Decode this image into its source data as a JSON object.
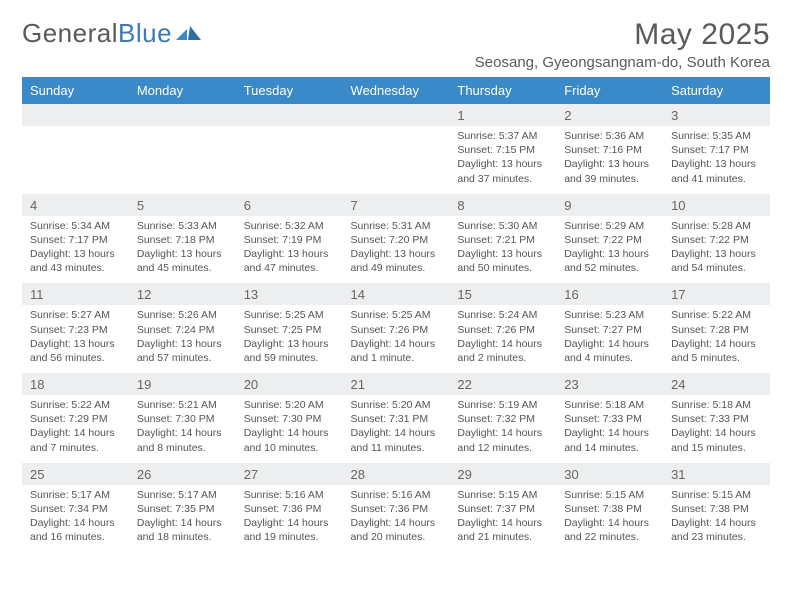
{
  "brand": {
    "part1": "General",
    "part2": "Blue",
    "logo_color": "#3a89c9"
  },
  "title": "May 2025",
  "location": "Seosang, Gyeongsangnam-do, South Korea",
  "colors": {
    "header_bg": "#3a89c9",
    "header_text": "#ffffff",
    "daynum_bg": "#eceeef",
    "rule": "#3a7ab8",
    "text": "#555555"
  },
  "weekdays": [
    "Sunday",
    "Monday",
    "Tuesday",
    "Wednesday",
    "Thursday",
    "Friday",
    "Saturday"
  ],
  "weeks": [
    [
      {
        "n": "",
        "sr": "",
        "ss": "",
        "dl": ""
      },
      {
        "n": "",
        "sr": "",
        "ss": "",
        "dl": ""
      },
      {
        "n": "",
        "sr": "",
        "ss": "",
        "dl": ""
      },
      {
        "n": "",
        "sr": "",
        "ss": "",
        "dl": ""
      },
      {
        "n": "1",
        "sr": "Sunrise: 5:37 AM",
        "ss": "Sunset: 7:15 PM",
        "dl": "Daylight: 13 hours and 37 minutes."
      },
      {
        "n": "2",
        "sr": "Sunrise: 5:36 AM",
        "ss": "Sunset: 7:16 PM",
        "dl": "Daylight: 13 hours and 39 minutes."
      },
      {
        "n": "3",
        "sr": "Sunrise: 5:35 AM",
        "ss": "Sunset: 7:17 PM",
        "dl": "Daylight: 13 hours and 41 minutes."
      }
    ],
    [
      {
        "n": "4",
        "sr": "Sunrise: 5:34 AM",
        "ss": "Sunset: 7:17 PM",
        "dl": "Daylight: 13 hours and 43 minutes."
      },
      {
        "n": "5",
        "sr": "Sunrise: 5:33 AM",
        "ss": "Sunset: 7:18 PM",
        "dl": "Daylight: 13 hours and 45 minutes."
      },
      {
        "n": "6",
        "sr": "Sunrise: 5:32 AM",
        "ss": "Sunset: 7:19 PM",
        "dl": "Daylight: 13 hours and 47 minutes."
      },
      {
        "n": "7",
        "sr": "Sunrise: 5:31 AM",
        "ss": "Sunset: 7:20 PM",
        "dl": "Daylight: 13 hours and 49 minutes."
      },
      {
        "n": "8",
        "sr": "Sunrise: 5:30 AM",
        "ss": "Sunset: 7:21 PM",
        "dl": "Daylight: 13 hours and 50 minutes."
      },
      {
        "n": "9",
        "sr": "Sunrise: 5:29 AM",
        "ss": "Sunset: 7:22 PM",
        "dl": "Daylight: 13 hours and 52 minutes."
      },
      {
        "n": "10",
        "sr": "Sunrise: 5:28 AM",
        "ss": "Sunset: 7:22 PM",
        "dl": "Daylight: 13 hours and 54 minutes."
      }
    ],
    [
      {
        "n": "11",
        "sr": "Sunrise: 5:27 AM",
        "ss": "Sunset: 7:23 PM",
        "dl": "Daylight: 13 hours and 56 minutes."
      },
      {
        "n": "12",
        "sr": "Sunrise: 5:26 AM",
        "ss": "Sunset: 7:24 PM",
        "dl": "Daylight: 13 hours and 57 minutes."
      },
      {
        "n": "13",
        "sr": "Sunrise: 5:25 AM",
        "ss": "Sunset: 7:25 PM",
        "dl": "Daylight: 13 hours and 59 minutes."
      },
      {
        "n": "14",
        "sr": "Sunrise: 5:25 AM",
        "ss": "Sunset: 7:26 PM",
        "dl": "Daylight: 14 hours and 1 minute."
      },
      {
        "n": "15",
        "sr": "Sunrise: 5:24 AM",
        "ss": "Sunset: 7:26 PM",
        "dl": "Daylight: 14 hours and 2 minutes."
      },
      {
        "n": "16",
        "sr": "Sunrise: 5:23 AM",
        "ss": "Sunset: 7:27 PM",
        "dl": "Daylight: 14 hours and 4 minutes."
      },
      {
        "n": "17",
        "sr": "Sunrise: 5:22 AM",
        "ss": "Sunset: 7:28 PM",
        "dl": "Daylight: 14 hours and 5 minutes."
      }
    ],
    [
      {
        "n": "18",
        "sr": "Sunrise: 5:22 AM",
        "ss": "Sunset: 7:29 PM",
        "dl": "Daylight: 14 hours and 7 minutes."
      },
      {
        "n": "19",
        "sr": "Sunrise: 5:21 AM",
        "ss": "Sunset: 7:30 PM",
        "dl": "Daylight: 14 hours and 8 minutes."
      },
      {
        "n": "20",
        "sr": "Sunrise: 5:20 AM",
        "ss": "Sunset: 7:30 PM",
        "dl": "Daylight: 14 hours and 10 minutes."
      },
      {
        "n": "21",
        "sr": "Sunrise: 5:20 AM",
        "ss": "Sunset: 7:31 PM",
        "dl": "Daylight: 14 hours and 11 minutes."
      },
      {
        "n": "22",
        "sr": "Sunrise: 5:19 AM",
        "ss": "Sunset: 7:32 PM",
        "dl": "Daylight: 14 hours and 12 minutes."
      },
      {
        "n": "23",
        "sr": "Sunrise: 5:18 AM",
        "ss": "Sunset: 7:33 PM",
        "dl": "Daylight: 14 hours and 14 minutes."
      },
      {
        "n": "24",
        "sr": "Sunrise: 5:18 AM",
        "ss": "Sunset: 7:33 PM",
        "dl": "Daylight: 14 hours and 15 minutes."
      }
    ],
    [
      {
        "n": "25",
        "sr": "Sunrise: 5:17 AM",
        "ss": "Sunset: 7:34 PM",
        "dl": "Daylight: 14 hours and 16 minutes."
      },
      {
        "n": "26",
        "sr": "Sunrise: 5:17 AM",
        "ss": "Sunset: 7:35 PM",
        "dl": "Daylight: 14 hours and 18 minutes."
      },
      {
        "n": "27",
        "sr": "Sunrise: 5:16 AM",
        "ss": "Sunset: 7:36 PM",
        "dl": "Daylight: 14 hours and 19 minutes."
      },
      {
        "n": "28",
        "sr": "Sunrise: 5:16 AM",
        "ss": "Sunset: 7:36 PM",
        "dl": "Daylight: 14 hours and 20 minutes."
      },
      {
        "n": "29",
        "sr": "Sunrise: 5:15 AM",
        "ss": "Sunset: 7:37 PM",
        "dl": "Daylight: 14 hours and 21 minutes."
      },
      {
        "n": "30",
        "sr": "Sunrise: 5:15 AM",
        "ss": "Sunset: 7:38 PM",
        "dl": "Daylight: 14 hours and 22 minutes."
      },
      {
        "n": "31",
        "sr": "Sunrise: 5:15 AM",
        "ss": "Sunset: 7:38 PM",
        "dl": "Daylight: 14 hours and 23 minutes."
      }
    ]
  ]
}
